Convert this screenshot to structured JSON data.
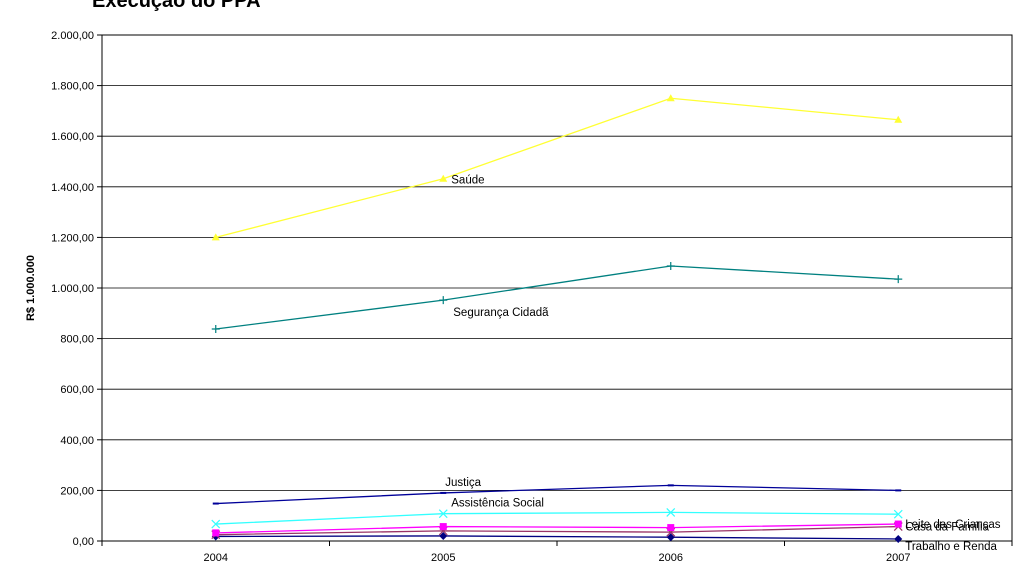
{
  "chart_data": {
    "type": "line",
    "title": "Execução do PPA",
    "ylabel": "R$ 1.000.000",
    "xlabel": "",
    "categories": [
      "2004",
      "2005",
      "2006",
      "2007"
    ],
    "ylim": [
      0,
      2000
    ],
    "yticks": [
      "0,00",
      "200,00",
      "400,00",
      "600,00",
      "800,00",
      "1.000,00",
      "1.200,00",
      "1.400,00",
      "1.600,00",
      "1.800,00",
      "2.000,00"
    ],
    "grid": "horizontal",
    "legend": "inline labels",
    "series": [
      {
        "name": "Saúde",
        "values": [
          1200,
          1432,
          1750,
          1665
        ],
        "color": "#FFFF33",
        "marker": "triangle"
      },
      {
        "name": "Segurança Cidadã",
        "values": [
          838,
          952,
          1087,
          1035
        ],
        "color": "#008080",
        "marker": "plus"
      },
      {
        "name": "Justiça",
        "values": [
          148,
          190,
          220,
          200
        ],
        "color": "#000099",
        "marker": "dash"
      },
      {
        "name": "Assistência Social",
        "values": [
          67,
          108,
          113,
          106
        ],
        "color": "#33FFFF",
        "marker": "x"
      },
      {
        "name": "Leite das Crianças",
        "values": [
          32,
          57,
          53,
          67
        ],
        "color": "#FF00FF",
        "marker": "square"
      },
      {
        "name": "Casa da Família",
        "values": [
          25,
          40,
          35,
          57
        ],
        "color": "#993366",
        "marker": "x"
      },
      {
        "name": "Trabalho e Renda",
        "values": [
          18,
          20,
          15,
          8
        ],
        "color": "#000080",
        "marker": "diamond"
      }
    ],
    "annotations": [
      {
        "text": "Saúde",
        "series": "Saúde"
      },
      {
        "text": "Segurança Cidadã",
        "series": "Segurança Cidadã"
      },
      {
        "text": "Justiça",
        "series": "Justiça"
      },
      {
        "text": "Assistência Social",
        "series": "Assistência Social"
      },
      {
        "text": "Leite das Crianças",
        "series": "Leite das Crianças"
      },
      {
        "text": "Casa da Família",
        "series": "Casa da Família"
      },
      {
        "text": "Trabalho e Renda",
        "series": "Trabalho e Renda"
      }
    ]
  }
}
